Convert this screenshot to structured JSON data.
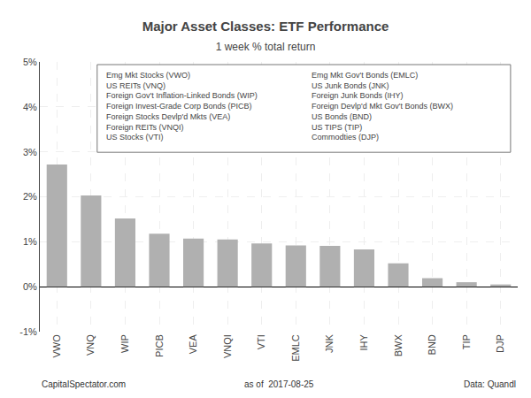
{
  "chart_data": {
    "type": "bar",
    "title": "Major Asset Classes: ETF Performance",
    "subtitle": "1 week % total return",
    "categories": [
      "VWO",
      "VNQ",
      "WIP",
      "PICB",
      "VEA",
      "VNQI",
      "VTI",
      "EMLC",
      "JNK",
      "IHY",
      "BWX",
      "BND",
      "TIP",
      "DJP"
    ],
    "values": [
      2.72,
      2.03,
      1.52,
      1.18,
      1.07,
      1.05,
      0.96,
      0.92,
      0.91,
      0.83,
      0.52,
      0.19,
      0.1,
      0.05
    ],
    "color": "#b0b0b0",
    "ylim": [
      -1.0,
      5.0
    ],
    "yticks": [
      {
        "value": -1.0,
        "label": "-1%"
      },
      {
        "value": 0.0,
        "label": "0%"
      },
      {
        "value": 1.0,
        "label": "1%"
      },
      {
        "value": 2.0,
        "label": "2%"
      },
      {
        "value": 3.0,
        "label": "3%"
      },
      {
        "value": 4.0,
        "label": "4%"
      },
      {
        "value": 5.0,
        "label": "5%"
      }
    ],
    "grid": true,
    "annotations": [
      "Emg Mkt Stocks (VWO)",
      "US REITs (VNQ)",
      "Foreign Gov't Inflation-Linked Bonds (WIP)",
      "Foreign Invest-Grade Corp Bonds (PICB)",
      "Foreign Stocks Devlp'd Mkts (VEA)",
      "Foreign REITs (VNQI)",
      "US Stocks (VTI)",
      "Emg Mkt Gov't Bonds (EMLC)",
      "US Junk Bonds (JNK)",
      "Foreign Junk Bonds (IHY)",
      "Foreign Devlp'd Mkt Gov't Bonds (BWX)",
      "US Bonds (BND)",
      "US TIPS (TIP)",
      "Commodties (DJP)"
    ],
    "footer": [
      "CapitalSpectator.com",
      "as of  2017-08-25",
      "Data: Quandl"
    ]
  }
}
